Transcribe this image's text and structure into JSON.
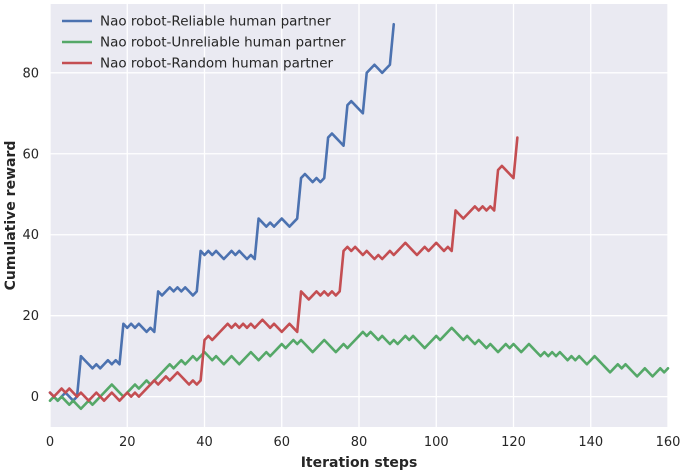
{
  "chart_data": {
    "type": "line",
    "xlabel": "Iteration steps",
    "ylabel": "Cumulative reward",
    "xlim": [
      0,
      160
    ],
    "ylim": [
      -7.5,
      97
    ],
    "xticks": [
      0,
      20,
      40,
      60,
      80,
      100,
      120,
      140,
      160
    ],
    "yticks": [
      0,
      20,
      40,
      60,
      80
    ],
    "grid": true,
    "legend_position": "top-left",
    "background_color": "#eaeaf2",
    "series": [
      {
        "name": "Nao robot-Reliable human partner",
        "color": "#4c72b0",
        "x": [
          0,
          1,
          2,
          3,
          4,
          5,
          6,
          7,
          8,
          9,
          10,
          11,
          12,
          13,
          14,
          15,
          16,
          17,
          18,
          19,
          20,
          21,
          22,
          23,
          24,
          25,
          26,
          27,
          28,
          29,
          30,
          31,
          32,
          33,
          34,
          35,
          36,
          37,
          38,
          39,
          40,
          41,
          42,
          43,
          44,
          45,
          46,
          47,
          48,
          49,
          50,
          51,
          52,
          53,
          54,
          55,
          56,
          57,
          58,
          59,
          60,
          61,
          62,
          63,
          64,
          65,
          66,
          67,
          68,
          69,
          70,
          71,
          72,
          73,
          74,
          75,
          76,
          77,
          78,
          79,
          80,
          81,
          82,
          83,
          84,
          85,
          86,
          87,
          88,
          89
        ],
        "y": [
          1,
          0,
          -1,
          0,
          1,
          0,
          -1,
          0,
          10,
          9,
          8,
          7,
          8,
          7,
          8,
          9,
          8,
          9,
          8,
          18,
          17,
          18,
          17,
          18,
          17,
          16,
          17,
          16,
          26,
          25,
          26,
          27,
          26,
          27,
          26,
          27,
          26,
          25,
          26,
          36,
          35,
          36,
          35,
          36,
          35,
          34,
          35,
          36,
          35,
          36,
          35,
          34,
          35,
          34,
          44,
          43,
          42,
          43,
          42,
          43,
          44,
          43,
          42,
          43,
          44,
          54,
          55,
          54,
          53,
          54,
          53,
          54,
          64,
          65,
          64,
          63,
          62,
          72,
          73,
          72,
          71,
          70,
          80,
          81,
          82,
          81,
          80,
          81,
          82,
          92
        ]
      },
      {
        "name": "Nao robot-Unreliable human partner",
        "color": "#55a868",
        "x": [
          0,
          1,
          2,
          3,
          4,
          5,
          6,
          7,
          8,
          9,
          10,
          11,
          12,
          13,
          14,
          15,
          16,
          17,
          18,
          19,
          20,
          21,
          22,
          23,
          24,
          25,
          26,
          27,
          28,
          29,
          30,
          31,
          32,
          33,
          34,
          35,
          36,
          37,
          38,
          39,
          40,
          41,
          42,
          43,
          44,
          45,
          46,
          47,
          48,
          49,
          50,
          51,
          52,
          53,
          54,
          55,
          56,
          57,
          58,
          59,
          60,
          61,
          62,
          63,
          64,
          65,
          66,
          67,
          68,
          69,
          70,
          71,
          72,
          73,
          74,
          75,
          76,
          77,
          78,
          79,
          80,
          81,
          82,
          83,
          84,
          85,
          86,
          87,
          88,
          89,
          90,
          91,
          92,
          93,
          94,
          95,
          96,
          97,
          98,
          99,
          100,
          101,
          102,
          103,
          104,
          105,
          106,
          107,
          108,
          109,
          110,
          111,
          112,
          113,
          114,
          115,
          116,
          117,
          118,
          119,
          120,
          121,
          122,
          123,
          124,
          125,
          126,
          127,
          128,
          129,
          130,
          131,
          132,
          133,
          134,
          135,
          136,
          137,
          138,
          139,
          140,
          141,
          142,
          143,
          144,
          145,
          146,
          147,
          148,
          149,
          150,
          151,
          152,
          153,
          154,
          155,
          156,
          157,
          158,
          159,
          160
        ],
        "y": [
          -1,
          0,
          -1,
          0,
          -1,
          -2,
          -1,
          -2,
          -3,
          -2,
          -1,
          -2,
          -1,
          0,
          1,
          2,
          3,
          2,
          1,
          0,
          1,
          2,
          3,
          2,
          3,
          4,
          3,
          4,
          5,
          6,
          7,
          8,
          7,
          8,
          9,
          8,
          9,
          10,
          9,
          10,
          11,
          10,
          9,
          10,
          9,
          8,
          9,
          10,
          9,
          8,
          9,
          10,
          11,
          10,
          9,
          10,
          11,
          10,
          11,
          12,
          13,
          12,
          13,
          14,
          13,
          14,
          13,
          12,
          11,
          12,
          13,
          14,
          13,
          12,
          11,
          12,
          13,
          12,
          13,
          14,
          15,
          16,
          15,
          16,
          15,
          14,
          15,
          14,
          13,
          14,
          13,
          14,
          15,
          14,
          15,
          14,
          13,
          12,
          13,
          14,
          15,
          14,
          15,
          16,
          17,
          16,
          15,
          14,
          15,
          14,
          13,
          14,
          13,
          12,
          13,
          12,
          11,
          12,
          13,
          12,
          13,
          12,
          11,
          12,
          13,
          12,
          11,
          10,
          11,
          10,
          11,
          10,
          11,
          10,
          9,
          10,
          9,
          10,
          9,
          8,
          9,
          10,
          9,
          8,
          7,
          6,
          7,
          8,
          7,
          8,
          7,
          6,
          5,
          6,
          7,
          6,
          5,
          6,
          7,
          6,
          7
        ]
      },
      {
        "name": "Nao robot-Random human partner",
        "color": "#c44e52",
        "x": [
          0,
          1,
          2,
          3,
          4,
          5,
          6,
          7,
          8,
          9,
          10,
          11,
          12,
          13,
          14,
          15,
          16,
          17,
          18,
          19,
          20,
          21,
          22,
          23,
          24,
          25,
          26,
          27,
          28,
          29,
          30,
          31,
          32,
          33,
          34,
          35,
          36,
          37,
          38,
          39,
          40,
          41,
          42,
          43,
          44,
          45,
          46,
          47,
          48,
          49,
          50,
          51,
          52,
          53,
          54,
          55,
          56,
          57,
          58,
          59,
          60,
          61,
          62,
          63,
          64,
          65,
          66,
          67,
          68,
          69,
          70,
          71,
          72,
          73,
          74,
          75,
          76,
          77,
          78,
          79,
          80,
          81,
          82,
          83,
          84,
          85,
          86,
          87,
          88,
          89,
          90,
          91,
          92,
          93,
          94,
          95,
          96,
          97,
          98,
          99,
          100,
          101,
          102,
          103,
          104,
          105,
          106,
          107,
          108,
          109,
          110,
          111,
          112,
          113,
          114,
          115,
          116,
          117,
          118,
          119,
          120,
          121
        ],
        "y": [
          1,
          0,
          1,
          2,
          1,
          2,
          1,
          0,
          1,
          0,
          -1,
          0,
          1,
          0,
          -1,
          0,
          1,
          0,
          -1,
          0,
          1,
          0,
          1,
          0,
          1,
          2,
          3,
          4,
          3,
          4,
          5,
          4,
          5,
          6,
          5,
          4,
          3,
          4,
          3,
          4,
          14,
          15,
          14,
          15,
          16,
          17,
          18,
          17,
          18,
          17,
          18,
          17,
          18,
          17,
          18,
          19,
          18,
          17,
          18,
          17,
          16,
          17,
          18,
          17,
          16,
          26,
          25,
          24,
          25,
          26,
          25,
          26,
          25,
          26,
          25,
          26,
          36,
          37,
          36,
          37,
          36,
          35,
          36,
          35,
          34,
          35,
          34,
          35,
          36,
          35,
          36,
          37,
          38,
          37,
          36,
          35,
          36,
          37,
          36,
          37,
          38,
          37,
          36,
          37,
          36,
          46,
          45,
          44,
          45,
          46,
          47,
          46,
          47,
          46,
          47,
          46,
          56,
          57,
          56,
          55,
          54,
          64
        ]
      }
    ]
  }
}
